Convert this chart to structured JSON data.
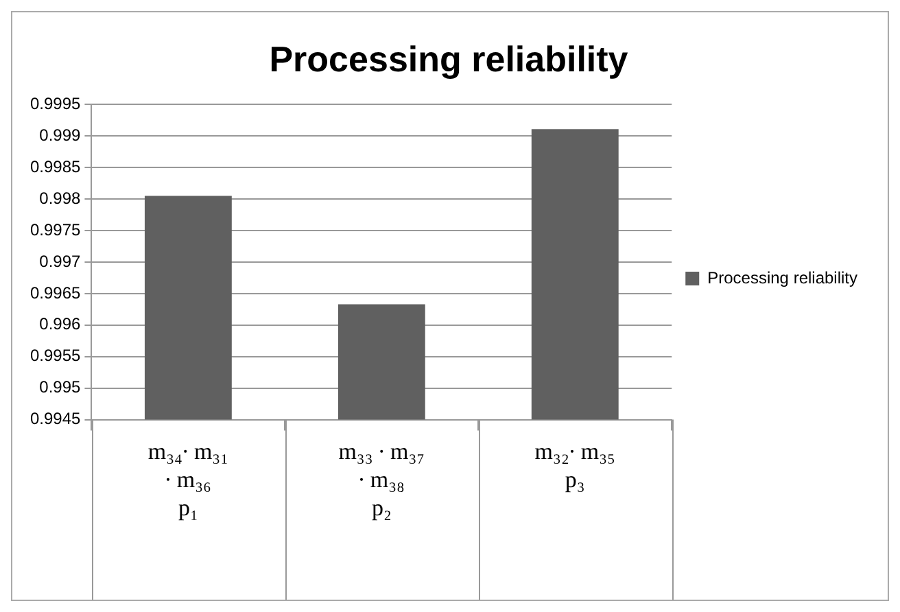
{
  "chart_data": {
    "type": "bar",
    "title": "Processing reliability",
    "categories": [
      "m₃₄∙ m₃₁\n∙ m₃₆\np₁",
      "m₃₃ ∙ m₃₇\n∙ m₃₈\np₂",
      "m₃₂∙ m₃₅\np₃"
    ],
    "series": [
      {
        "name": "Processing reliability",
        "color": "#606060",
        "values": [
          0.99805,
          0.99633,
          0.99911
        ]
      }
    ],
    "ylim": [
      0.9945,
      0.9995
    ],
    "yticks": [
      0.9945,
      0.995,
      0.9955,
      0.996,
      0.9965,
      0.997,
      0.9975,
      0.998,
      0.9985,
      0.999,
      0.9995
    ],
    "grid": "y",
    "legend": "right"
  }
}
